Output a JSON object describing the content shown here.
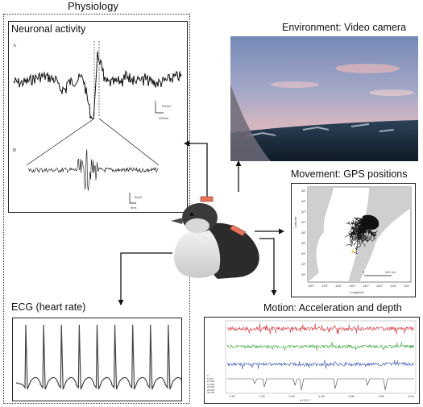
{
  "physiology": {
    "title": "Physiology",
    "neuronal": {
      "title": "Neuronal activity",
      "trace_a_label": "A",
      "trace_b_label": "B",
      "scale_a_amp": "200µV",
      "scale_a_time": "333ms",
      "scale_b_amp": "50µV",
      "scale_b_time": "5ms"
    },
    "ecg": {
      "title": "ECG (heart rate)",
      "beats": 9
    }
  },
  "environment": {
    "title": "Environment: Video camera"
  },
  "movement": {
    "title": "Movement: GPS positions",
    "ylabel": "Latitude",
    "xlabel": "Longitude",
    "lat_ticks": [
      "46°",
      "44°",
      "42°",
      "40°",
      "38°",
      "36°",
      "34°",
      "32°",
      "30°"
    ],
    "lon_ticks": [
      "130°",
      "133°",
      "136°",
      "139°",
      "142°",
      "145°",
      "148°",
      "151°"
    ],
    "scale_left": "0",
    "scale_right": "400 km"
  },
  "motion": {
    "title": "Motion: Acceleration and depth",
    "depth_ticks": [
      "0",
      "5.000",
      "10.000",
      "15.000",
      "20.000",
      "25.000",
      "30.000"
    ],
    "time_ticks": [
      "1:30",
      "1:35",
      "1:40",
      "1:45",
      "1:50",
      "1:55",
      "2:00"
    ],
    "xlabel": "e+10^7"
  },
  "colors": {
    "accel_x": "#d9363e",
    "accel_y": "#3ca33c",
    "accel_z": "#3a56b3",
    "depth": "#444444",
    "logger": "#e8735a",
    "land": "#cfcfcf"
  }
}
